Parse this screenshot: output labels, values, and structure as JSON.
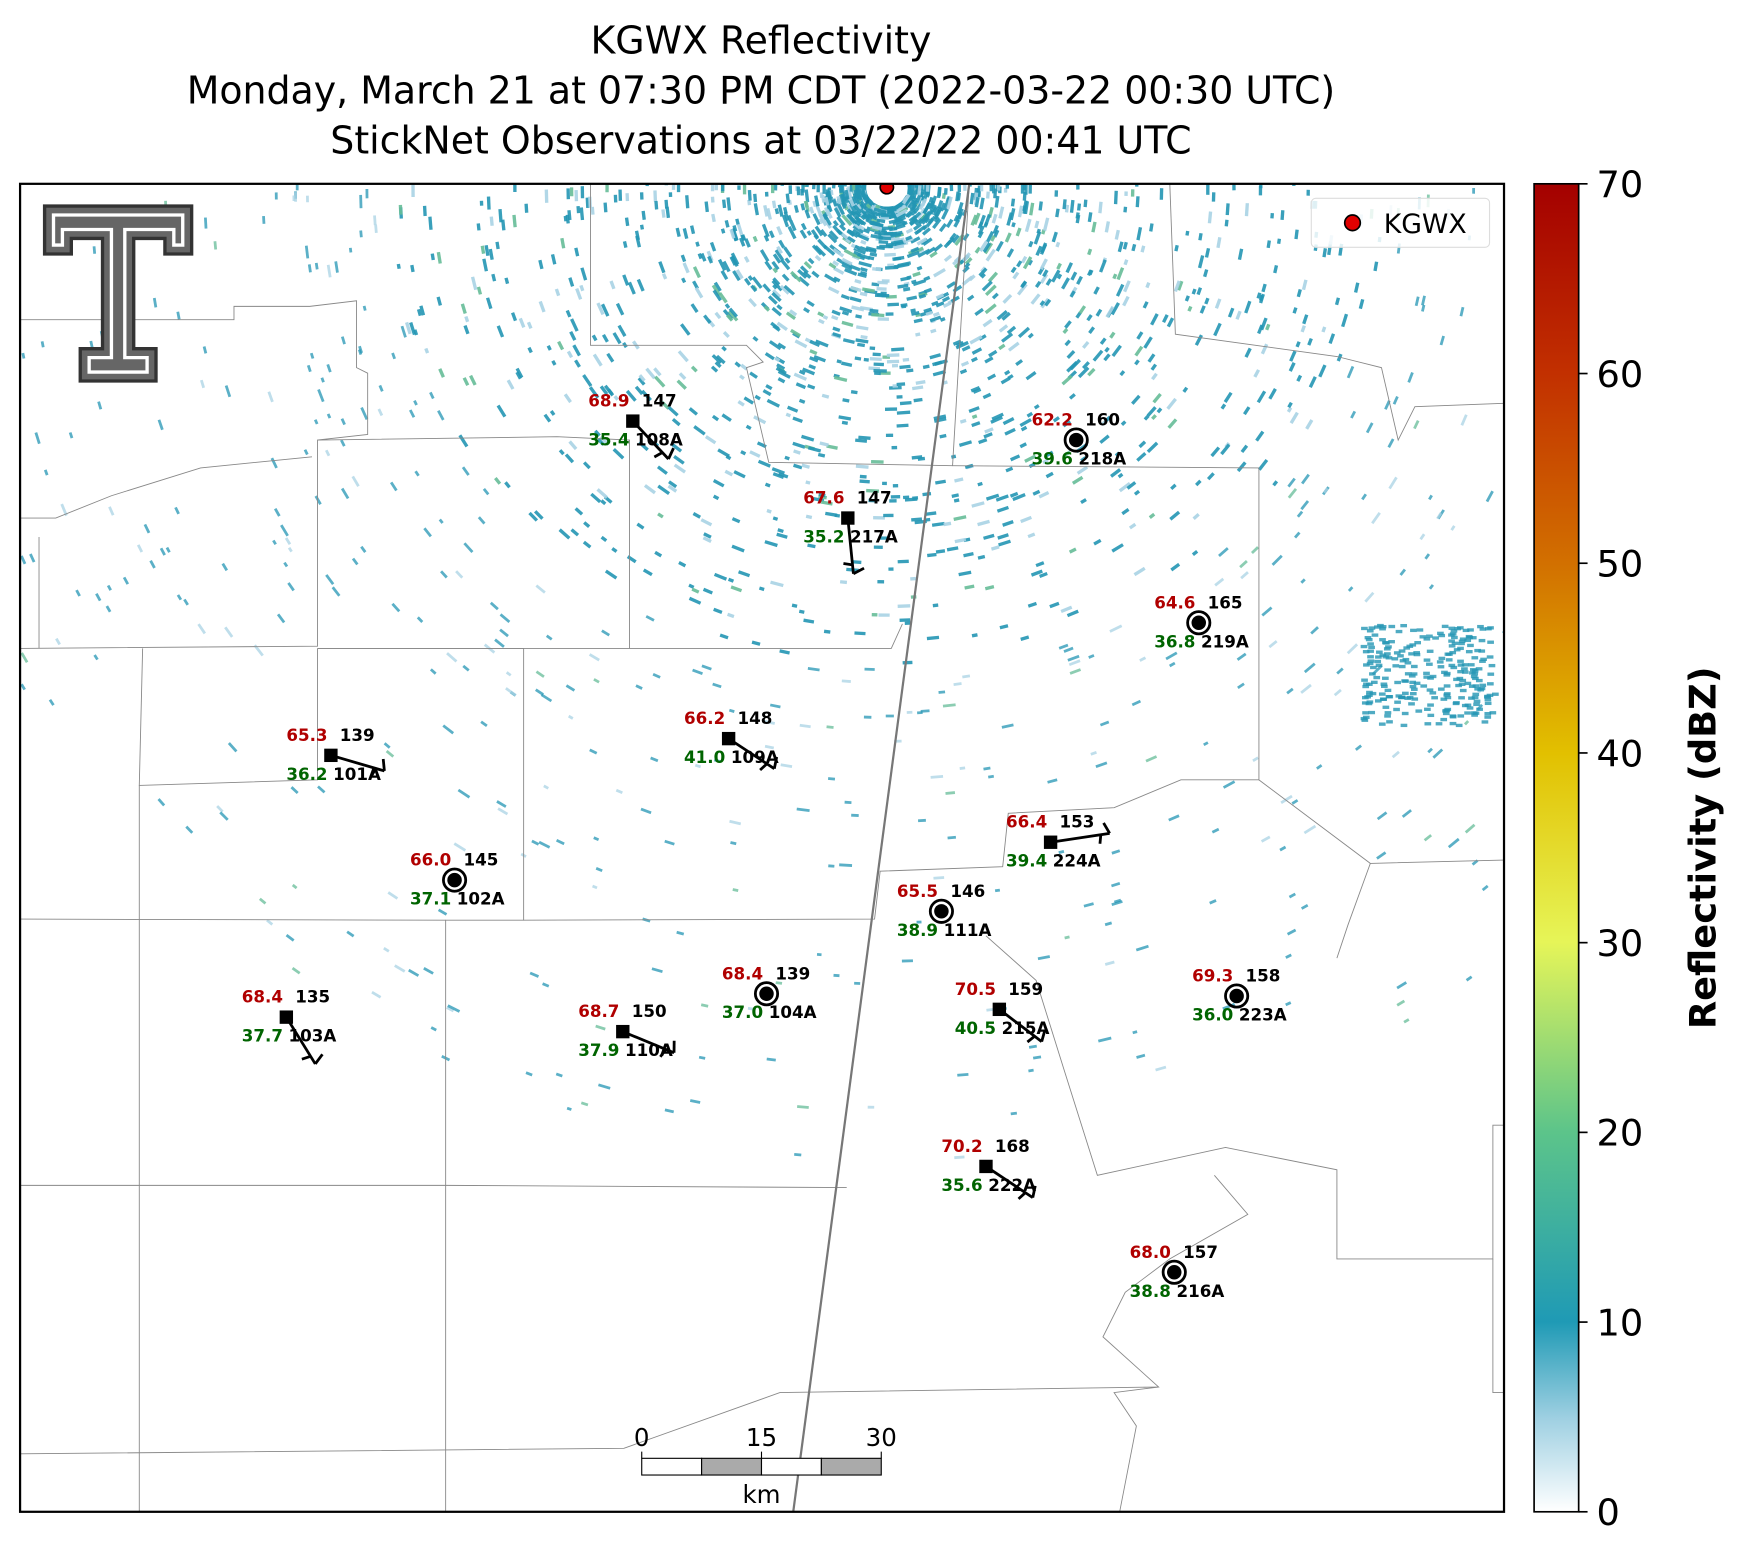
{
  "title": {
    "line1": "KGWX Reflectivity",
    "line2": "Monday, March 21 at 07:30 PM CDT (2022-03-22 00:30 UTC)",
    "line3": "StickNet Observations at 03/22/22 00:41 UTC"
  },
  "legend": {
    "label": "KGWX",
    "color": "#e00000"
  },
  "colorbar": {
    "label": "Reflectivity (dBZ)",
    "lim": [
      0,
      70
    ],
    "ticks": [
      0,
      10,
      20,
      30,
      40,
      50,
      60,
      70
    ]
  },
  "scale_bar": {
    "ticks": [
      0,
      15,
      30
    ],
    "unit": "km"
  },
  "stations": [
    {
      "id": "108A",
      "temperature": "68.9",
      "pressure": "147",
      "dewpoint": "35.4"
    },
    {
      "id": "217A",
      "temperature": "67.6",
      "pressure": "147",
      "dewpoint": "35.2"
    },
    {
      "id": "218A",
      "temperature": "62.2",
      "pressure": "160",
      "dewpoint": "39.6"
    },
    {
      "id": "219A",
      "temperature": "64.6",
      "pressure": "165",
      "dewpoint": "36.8"
    },
    {
      "id": "101A",
      "temperature": "65.3",
      "pressure": "139",
      "dewpoint": "36.2"
    },
    {
      "id": "109A",
      "temperature": "66.2",
      "pressure": "148",
      "dewpoint": "41.0"
    },
    {
      "id": "224A",
      "temperature": "66.4",
      "pressure": "153",
      "dewpoint": "39.4"
    },
    {
      "id": "102A",
      "temperature": "66.0",
      "pressure": "145",
      "dewpoint": "37.1"
    },
    {
      "id": "111A",
      "temperature": "65.5",
      "pressure": "146",
      "dewpoint": "38.9"
    },
    {
      "id": "103A",
      "temperature": "68.4",
      "pressure": "135",
      "dewpoint": "37.7"
    },
    {
      "id": "110A",
      "temperature": "68.7",
      "pressure": "150",
      "dewpoint": "37.9"
    },
    {
      "id": "104A",
      "temperature": "68.4",
      "pressure": "139",
      "dewpoint": "37.0"
    },
    {
      "id": "215A",
      "temperature": "70.5",
      "pressure": "159",
      "dewpoint": "40.5"
    },
    {
      "id": "223A",
      "temperature": "69.3",
      "pressure": "158",
      "dewpoint": "36.0"
    },
    {
      "id": "222A",
      "temperature": "70.2",
      "pressure": "168",
      "dewpoint": "35.6"
    },
    {
      "id": "216A",
      "temperature": "68.0",
      "pressure": "157",
      "dewpoint": "38.8"
    }
  ]
}
